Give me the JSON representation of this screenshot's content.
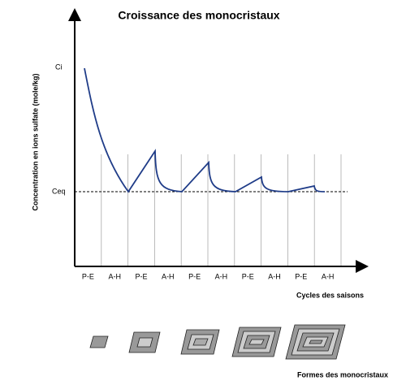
{
  "title": "Croissance des monocristaux",
  "y_axis_label": "Concentration en ions sulfate  (mole/kg)",
  "y_labels": [
    "Ci",
    "Ceq"
  ],
  "seasons": [
    "P-E",
    "A-H",
    "P-E",
    "A-H",
    "P-E",
    "A-H",
    "P-E",
    "A-H",
    "P-E",
    "A-H"
  ],
  "x_axis_label": "Cycles des saisons",
  "footer_label": "Formes des monocristaux"
}
